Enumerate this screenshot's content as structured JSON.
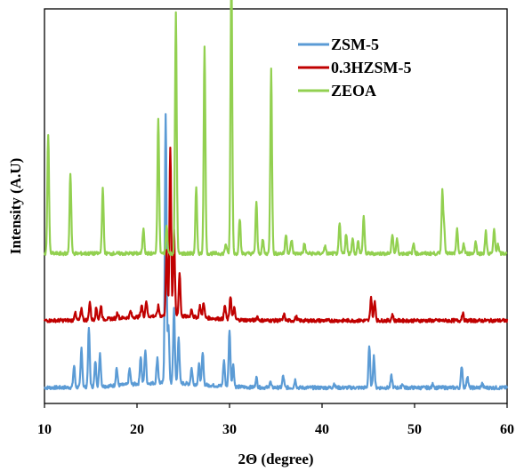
{
  "chart_data": {
    "type": "line",
    "xlabel": "2Θ (degree)",
    "ylabel": "Intensity (A.U)",
    "xlim": [
      10,
      60
    ],
    "xticks": [
      10,
      20,
      30,
      40,
      50,
      60
    ],
    "ylim": [
      0,
      100
    ],
    "grid": false,
    "legend_position": "top-right",
    "series": [
      {
        "name": "ZSM-5",
        "color": "#5b9bd5",
        "baseline": 4,
        "peaks": [
          [
            13.2,
            5.5
          ],
          [
            14.0,
            10.0
          ],
          [
            14.8,
            15.0
          ],
          [
            15.5,
            6.5
          ],
          [
            16.0,
            8.5
          ],
          [
            17.8,
            4.5
          ],
          [
            19.2,
            4.0
          ],
          [
            20.4,
            7.0
          ],
          [
            20.9,
            8.5
          ],
          [
            22.2,
            6.5
          ],
          [
            23.1,
            68.0
          ],
          [
            23.4,
            14.0
          ],
          [
            24.0,
            19.0
          ],
          [
            24.5,
            12.0
          ],
          [
            25.9,
            4.0
          ],
          [
            26.7,
            5.0
          ],
          [
            27.1,
            8.0
          ],
          [
            29.4,
            6.5
          ],
          [
            30.0,
            14.5
          ],
          [
            30.4,
            5.5
          ],
          [
            32.9,
            2.5
          ],
          [
            34.4,
            1.5
          ],
          [
            35.8,
            3.0
          ],
          [
            37.1,
            2.0
          ],
          [
            41.3,
            1.0
          ],
          [
            45.1,
            10.5
          ],
          [
            45.6,
            8.0
          ],
          [
            47.5,
            3.0
          ],
          [
            48.7,
            1.0
          ],
          [
            52.0,
            1.0
          ],
          [
            55.1,
            5.5
          ],
          [
            55.7,
            3.0
          ],
          [
            57.3,
            1.0
          ]
        ]
      },
      {
        "name": "0.3HZSM-5",
        "color": "#c00000",
        "baseline": 21,
        "peaks": [
          [
            13.3,
            2.0
          ],
          [
            14.0,
            3.0
          ],
          [
            14.9,
            4.5
          ],
          [
            15.6,
            3.0
          ],
          [
            16.1,
            3.5
          ],
          [
            17.9,
            1.5
          ],
          [
            19.3,
            1.5
          ],
          [
            20.5,
            3.0
          ],
          [
            21.0,
            4.0
          ],
          [
            22.3,
            2.5
          ],
          [
            23.2,
            16.5
          ],
          [
            23.6,
            43.0
          ],
          [
            24.0,
            22.0
          ],
          [
            24.6,
            11.0
          ],
          [
            25.9,
            2.0
          ],
          [
            26.8,
            3.0
          ],
          [
            27.2,
            4.0
          ],
          [
            29.5,
            3.5
          ],
          [
            30.1,
            6.0
          ],
          [
            30.5,
            3.0
          ],
          [
            33.0,
            1.0
          ],
          [
            35.9,
            1.5
          ],
          [
            37.2,
            1.0
          ],
          [
            45.3,
            6.0
          ],
          [
            45.7,
            5.0
          ],
          [
            47.6,
            1.5
          ],
          [
            55.2,
            2.0
          ]
        ]
      },
      {
        "name": "ZEOA",
        "color": "#92d050",
        "baseline": 38,
        "peaks": [
          [
            10.4,
            30.0
          ],
          [
            12.8,
            20.5
          ],
          [
            16.3,
            16.5
          ],
          [
            20.7,
            6.5
          ],
          [
            22.3,
            34.5
          ],
          [
            23.2,
            7.0
          ],
          [
            24.2,
            61.0
          ],
          [
            26.4,
            16.5
          ],
          [
            27.3,
            52.5
          ],
          [
            29.6,
            2.5
          ],
          [
            30.2,
            72.5
          ],
          [
            31.1,
            9.0
          ],
          [
            32.9,
            13.0
          ],
          [
            33.6,
            3.5
          ],
          [
            34.5,
            47.0
          ],
          [
            36.1,
            5.0
          ],
          [
            36.7,
            3.5
          ],
          [
            38.1,
            2.5
          ],
          [
            40.3,
            2.0
          ],
          [
            41.9,
            7.5
          ],
          [
            42.6,
            5.0
          ],
          [
            43.3,
            4.0
          ],
          [
            43.9,
            3.0
          ],
          [
            44.5,
            9.5
          ],
          [
            47.6,
            5.0
          ],
          [
            48.1,
            3.5
          ],
          [
            49.9,
            2.5
          ],
          [
            53.0,
            15.5
          ],
          [
            53.2,
            6.0
          ],
          [
            54.6,
            6.0
          ],
          [
            55.3,
            2.5
          ],
          [
            56.6,
            3.0
          ],
          [
            57.7,
            5.5
          ],
          [
            58.6,
            6.0
          ],
          [
            59.0,
            2.5
          ]
        ]
      }
    ]
  }
}
